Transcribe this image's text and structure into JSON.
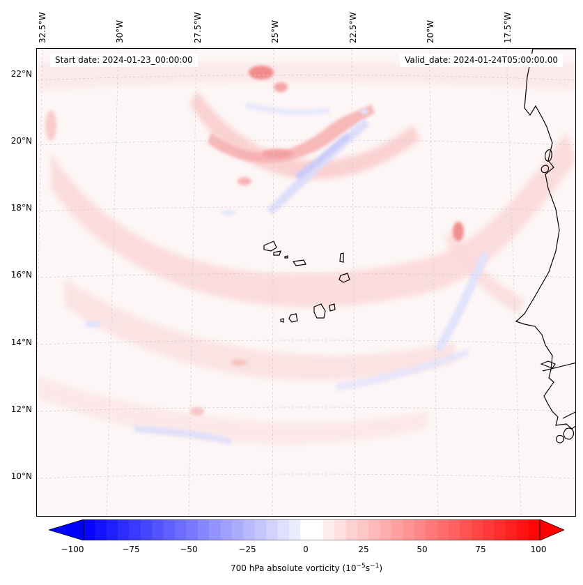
{
  "boxes": {
    "start": "Start date: 2024-01-23_00:00:00",
    "valid": "Valid_date: 2024-01-24T05:00:00.00"
  },
  "lon_labels": [
    "32.5°W",
    "30°W",
    "27.5°W",
    "25°W",
    "22.5°W",
    "20°W",
    "17.5°W"
  ],
  "lat_labels": [
    "22°N",
    "20°N",
    "18°N",
    "16°N",
    "14°N",
    "12°N",
    "10°N"
  ],
  "colorbar": {
    "ticks": [
      "−100",
      "−75",
      "−50",
      "−25",
      "0",
      "25",
      "50",
      "75",
      "100"
    ],
    "label_main": "700 hPa absolute vorticity (10",
    "label_exp1": "−5",
    "label_unit": "s",
    "label_exp2": "−1",
    "label_close": ")",
    "min_color": "#0000ff",
    "mid_color": "#ffffff",
    "max_color": "#ff0000"
  },
  "field": {
    "name": "700 hPa absolute vorticity",
    "min": -100,
    "max": 100,
    "positive_color": "#ff0000",
    "negative_color": "#0000ff",
    "background_color": "#fdf6f6"
  }
}
